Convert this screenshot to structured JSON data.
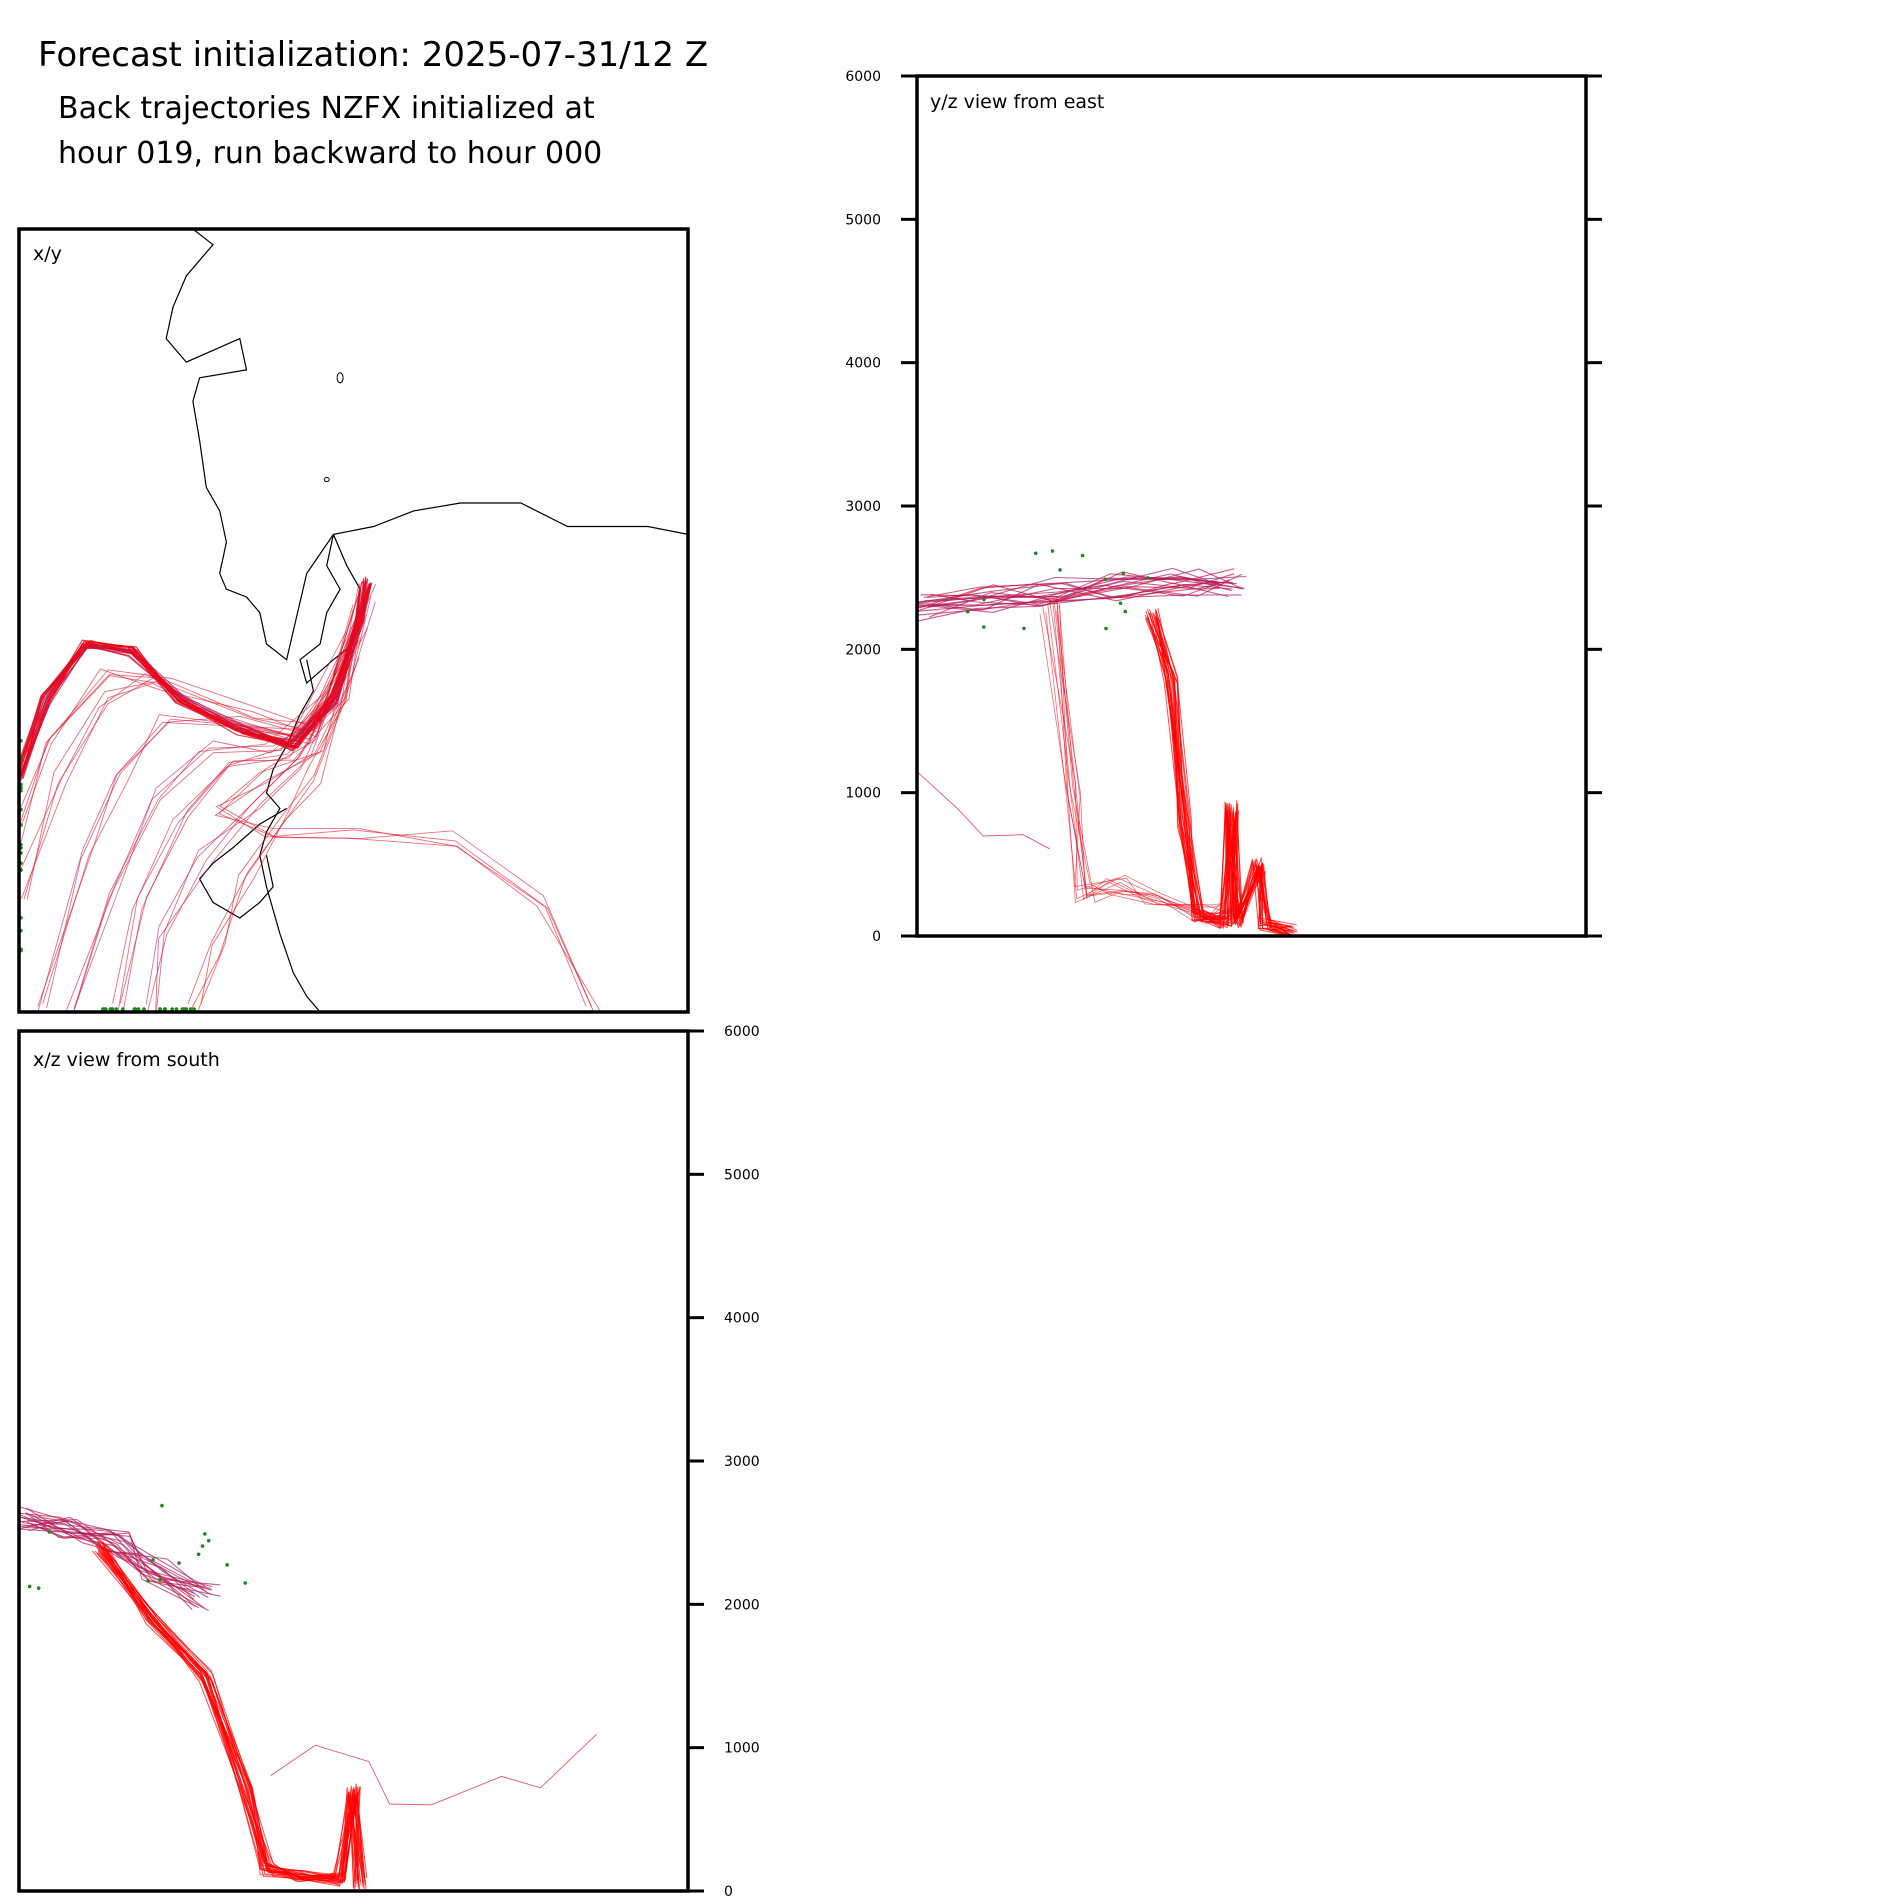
{
  "header": {
    "title": "Forecast initialization: 2025-07-31/12 Z",
    "subtitle_line1": "Back trajectories NZFX initialized at",
    "subtitle_line2": "hour 019, run backward to hour 000"
  },
  "colors": {
    "trajectory_high": "#a0206e",
    "trajectory_low": "#ff0000",
    "endpoint": "#1a8a1a",
    "coastline": "#000000",
    "frame": "#000000"
  },
  "chart_data": [
    {
      "name": "x/y",
      "type": "line",
      "label": "x/y",
      "description_free": true,
      "coastline": [
        [
          0.26,
          0.0
        ],
        [
          0.29,
          0.02
        ],
        [
          0.27,
          0.04
        ],
        [
          0.25,
          0.06
        ],
        [
          0.23,
          0.1
        ],
        [
          0.22,
          0.14
        ],
        [
          0.25,
          0.17
        ],
        [
          0.33,
          0.14
        ],
        [
          0.34,
          0.18
        ],
        [
          0.27,
          0.19
        ],
        [
          0.26,
          0.22
        ],
        [
          0.27,
          0.27
        ],
        [
          0.28,
          0.33
        ],
        [
          0.3,
          0.36
        ],
        [
          0.31,
          0.4
        ],
        [
          0.3,
          0.44
        ],
        [
          0.31,
          0.46
        ],
        [
          0.34,
          0.47
        ],
        [
          0.36,
          0.49
        ],
        [
          0.37,
          0.53
        ],
        [
          0.4,
          0.55
        ],
        [
          0.43,
          0.44
        ],
        [
          0.47,
          0.39
        ],
        [
          0.53,
          0.38
        ],
        [
          0.59,
          0.36
        ],
        [
          0.66,
          0.35
        ],
        [
          0.75,
          0.35
        ],
        [
          0.82,
          0.38
        ],
        [
          0.88,
          0.38
        ],
        [
          0.94,
          0.38
        ],
        [
          1.0,
          0.39
        ]
      ],
      "coastline2": [
        [
          0.47,
          0.39
        ],
        [
          0.46,
          0.43
        ],
        [
          0.48,
          0.46
        ],
        [
          0.46,
          0.49
        ],
        [
          0.45,
          0.53
        ],
        [
          0.42,
          0.55
        ],
        [
          0.43,
          0.58
        ],
        [
          0.47,
          0.55
        ],
        [
          0.5,
          0.53
        ],
        [
          0.51,
          0.46
        ],
        [
          0.49,
          0.43
        ],
        [
          0.47,
          0.39
        ]
      ],
      "coastline3": [
        [
          0.43,
          0.55
        ],
        [
          0.44,
          0.59
        ],
        [
          0.42,
          0.62
        ],
        [
          0.4,
          0.66
        ],
        [
          0.38,
          0.69
        ],
        [
          0.37,
          0.72
        ],
        [
          0.39,
          0.74
        ],
        [
          0.37,
          0.77
        ],
        [
          0.36,
          0.8
        ],
        [
          0.37,
          0.84
        ],
        [
          0.39,
          0.9
        ],
        [
          0.41,
          0.95
        ],
        [
          0.43,
          0.98
        ],
        [
          0.45,
          1.0
        ]
      ],
      "coastline4": [
        [
          0.4,
          0.74
        ],
        [
          0.36,
          0.76
        ],
        [
          0.32,
          0.79
        ],
        [
          0.29,
          0.81
        ],
        [
          0.27,
          0.83
        ],
        [
          0.29,
          0.86
        ],
        [
          0.33,
          0.88
        ],
        [
          0.36,
          0.86
        ],
        [
          0.38,
          0.84
        ],
        [
          0.37,
          0.8
        ]
      ],
      "bundle_main": [
        [
          0.0,
          0.7
        ],
        [
          0.04,
          0.6
        ],
        [
          0.1,
          0.53
        ],
        [
          0.17,
          0.54
        ],
        [
          0.24,
          0.6
        ],
        [
          0.33,
          0.64
        ],
        [
          0.41,
          0.66
        ],
        [
          0.47,
          0.6
        ],
        [
          0.51,
          0.5
        ],
        [
          0.52,
          0.45
        ]
      ],
      "bundle_spread": [
        [
          [
            0.03,
            1.0
          ],
          [
            0.1,
            0.8
          ],
          [
            0.15,
            0.7
          ],
          [
            0.22,
            0.62
          ],
          [
            0.33,
            0.63
          ],
          [
            0.43,
            0.65
          ],
          [
            0.51,
            0.5
          ]
        ],
        [
          [
            0.08,
            1.0
          ],
          [
            0.14,
            0.85
          ],
          [
            0.2,
            0.72
          ],
          [
            0.28,
            0.66
          ],
          [
            0.38,
            0.66
          ],
          [
            0.47,
            0.6
          ],
          [
            0.52,
            0.46
          ]
        ],
        [
          [
            0.14,
            1.0
          ],
          [
            0.18,
            0.86
          ],
          [
            0.24,
            0.75
          ],
          [
            0.31,
            0.69
          ],
          [
            0.4,
            0.67
          ],
          [
            0.48,
            0.59
          ],
          [
            0.51,
            0.46
          ]
        ],
        [
          [
            0.2,
            1.0
          ],
          [
            0.22,
            0.9
          ],
          [
            0.28,
            0.8
          ],
          [
            0.35,
            0.73
          ],
          [
            0.43,
            0.68
          ],
          [
            0.49,
            0.57
          ],
          [
            0.52,
            0.46
          ]
        ],
        [
          [
            0.0,
            0.85
          ],
          [
            0.06,
            0.7
          ],
          [
            0.12,
            0.6
          ],
          [
            0.2,
            0.57
          ],
          [
            0.3,
            0.63
          ],
          [
            0.42,
            0.65
          ],
          [
            0.5,
            0.52
          ]
        ],
        [
          [
            0.0,
            0.78
          ],
          [
            0.05,
            0.66
          ],
          [
            0.13,
            0.56
          ],
          [
            0.22,
            0.58
          ],
          [
            0.34,
            0.62
          ],
          [
            0.44,
            0.64
          ],
          [
            0.51,
            0.49
          ]
        ],
        [
          [
            0.26,
            1.0
          ],
          [
            0.3,
            0.92
          ],
          [
            0.34,
            0.82
          ],
          [
            0.39,
            0.75
          ],
          [
            0.44,
            0.7
          ],
          [
            0.49,
            0.6
          ],
          [
            0.52,
            0.47
          ]
        ],
        [
          [
            0.86,
            1.0
          ],
          [
            0.78,
            0.86
          ],
          [
            0.66,
            0.78
          ],
          [
            0.5,
            0.77
          ],
          [
            0.38,
            0.77
          ],
          [
            0.3,
            0.74
          ],
          [
            0.36,
            0.7
          ],
          [
            0.45,
            0.66
          ],
          [
            0.5,
            0.54
          ]
        ]
      ]
    },
    {
      "name": "y/z view from east",
      "type": "line",
      "label": "y/z view from east",
      "ylim": [
        0,
        6000
      ],
      "yticks": [
        "0",
        "1000",
        "2000",
        "3000",
        "4000",
        "5000",
        "6000"
      ],
      "bundle_high": [
        [
          0.0,
          2300
        ],
        [
          0.1,
          2360
        ],
        [
          0.2,
          2400
        ],
        [
          0.3,
          2440
        ],
        [
          0.4,
          2470
        ],
        [
          0.47,
          2460
        ]
      ],
      "bundle_low": [
        [
          0.35,
          2250
        ],
        [
          0.38,
          1800
        ],
        [
          0.4,
          800
        ],
        [
          0.42,
          150
        ],
        [
          0.46,
          100
        ],
        [
          0.47,
          900
        ],
        [
          0.48,
          100
        ],
        [
          0.51,
          500
        ],
        [
          0.52,
          80
        ],
        [
          0.56,
          30
        ]
      ],
      "bundle_mid": [
        [
          0.2,
          2300
        ],
        [
          0.23,
          1000
        ],
        [
          0.25,
          300
        ],
        [
          0.3,
          350
        ],
        [
          0.35,
          250
        ],
        [
          0.43,
          150
        ],
        [
          0.47,
          200
        ]
      ],
      "outlier": [
        [
          0.0,
          1150
        ],
        [
          0.06,
          900
        ],
        [
          0.1,
          700
        ],
        [
          0.16,
          700
        ],
        [
          0.2,
          600
        ]
      ]
    },
    {
      "name": "x/z view from south",
      "type": "line",
      "label": "x/z view from south",
      "ylim": [
        0,
        6000
      ],
      "yticks": [
        "0",
        "1000",
        "2000",
        "3000",
        "4000",
        "5000",
        "6000"
      ],
      "bundle_high": [
        [
          0.0,
          2600
        ],
        [
          0.08,
          2520
        ],
        [
          0.15,
          2420
        ],
        [
          0.2,
          2250
        ],
        [
          0.28,
          2050
        ]
      ],
      "bundle_low": [
        [
          0.12,
          2400
        ],
        [
          0.2,
          1900
        ],
        [
          0.28,
          1500
        ],
        [
          0.34,
          700
        ],
        [
          0.37,
          150
        ],
        [
          0.42,
          100
        ],
        [
          0.48,
          80
        ],
        [
          0.5,
          700
        ],
        [
          0.51,
          60
        ]
      ],
      "outlier": [
        [
          0.38,
          800
        ],
        [
          0.44,
          1000
        ],
        [
          0.52,
          900
        ],
        [
          0.55,
          600
        ],
        [
          0.62,
          600
        ],
        [
          0.72,
          800
        ],
        [
          0.78,
          700
        ],
        [
          0.86,
          1100
        ]
      ]
    }
  ]
}
